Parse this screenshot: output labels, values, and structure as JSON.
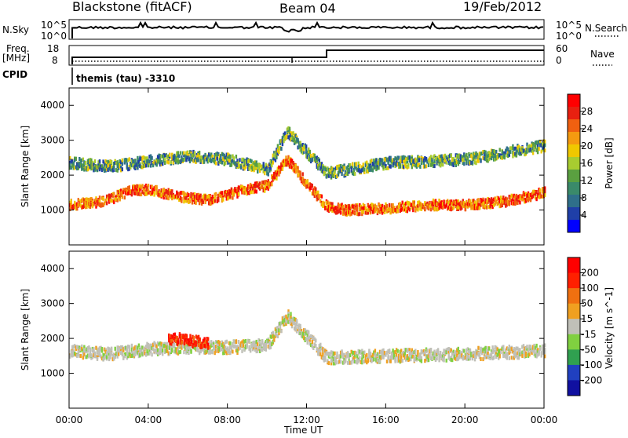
{
  "header": {
    "station": "Blackstone (fitACF)",
    "beam": "Beam 04",
    "date": "19/Feb/2012"
  },
  "top_panels": {
    "nsky_label": "N.Sky",
    "nsky_ticks": [
      "10^5",
      "10^0"
    ],
    "nsearch_label": "N.Search",
    "nsearch_ticks": [
      "10^5",
      "10^0"
    ],
    "freq_label_line1": "Freq.",
    "freq_label_line2": "[MHz]",
    "freq_ticks": [
      "18",
      "8"
    ],
    "nave_label": "Nave",
    "nave_ticks": [
      "60",
      "0"
    ],
    "cpid_label": "CPID",
    "cpid_value": "themis (tau) -3310"
  },
  "colors": {
    "power_scale": [
      "#0000ff",
      "#1f3fa8",
      "#2f6f8a",
      "#3a8a6a",
      "#5aa040",
      "#a8cc30",
      "#f0c800",
      "#f59a10",
      "#f06010",
      "#e82010",
      "#ff0000"
    ],
    "velocity_scale": [
      "#1010a0",
      "#2040c0",
      "#30a050",
      "#80d040",
      "#c0c0b8",
      "#f0a020",
      "#f07010",
      "#ff2000",
      "#ff0000"
    ]
  },
  "chart_data": [
    {
      "type": "heatmap",
      "title": "",
      "xlabel": "",
      "ylabel": "Slant Range [km]",
      "x_range_hours": [
        0,
        24
      ],
      "ylim": [
        0,
        4500
      ],
      "x_ticks": [
        "00:00",
        "04:00",
        "08:00",
        "12:00",
        "16:00",
        "20:00",
        "00:00"
      ],
      "y_ticks": [
        "1000",
        "2000",
        "3000",
        "4000"
      ],
      "colorbar": {
        "label": "Power [dB]",
        "ticks": [
          "28",
          "24",
          "20",
          "16",
          "12",
          "8",
          "4"
        ],
        "range": [
          0,
          30
        ]
      },
      "series": [
        {
          "band": "main_echo",
          "x_hours": [
            0,
            1,
            2,
            3,
            4,
            5,
            6,
            7,
            8,
            9,
            10,
            11,
            12,
            13,
            14,
            16,
            18,
            20,
            22,
            24
          ],
          "y_km": [
            1200,
            1250,
            1350,
            1600,
            1650,
            1500,
            1400,
            1350,
            1500,
            1650,
            1750,
            2500,
            1800,
            1150,
            1050,
            1100,
            1200,
            1200,
            1300,
            1550
          ]
        },
        {
          "band": "upper_echo",
          "x_hours": [
            0,
            2,
            4,
            6,
            8,
            10,
            11,
            13,
            16,
            20,
            24
          ],
          "y_km": [
            2400,
            2300,
            2450,
            2600,
            2500,
            2200,
            3300,
            2100,
            2400,
            2500,
            2900
          ]
        }
      ]
    },
    {
      "type": "heatmap",
      "title": "",
      "xlabel": "Time UT",
      "ylabel": "Slant Range [km]",
      "x_range_hours": [
        0,
        24
      ],
      "ylim": [
        0,
        4500
      ],
      "x_ticks": [
        "00:00",
        "04:00",
        "08:00",
        "12:00",
        "16:00",
        "20:00",
        "00:00"
      ],
      "y_ticks": [
        "1000",
        "2000",
        "3000",
        "4000"
      ],
      "colorbar": {
        "label": "Velocity [m s^-1]",
        "ticks": [
          "200",
          "100",
          "50",
          "15",
          "-15",
          "-50",
          "-100",
          "-200"
        ],
        "range": [
          -250,
          250
        ]
      },
      "series": [
        {
          "band": "ground_scatter",
          "x_hours": [
            0,
            2,
            4,
            6,
            8,
            10,
            11,
            13,
            16,
            20,
            24
          ],
          "y_km": [
            1700,
            1600,
            1750,
            1800,
            1800,
            1850,
            2700,
            1500,
            1550,
            1600,
            1700
          ]
        },
        {
          "band": "negative_velocity_patch",
          "x_hours": [
            5,
            5.5,
            6,
            6.5,
            7
          ],
          "y_km": [
            2000,
            2050,
            2000,
            1950,
            1900
          ]
        }
      ]
    }
  ]
}
